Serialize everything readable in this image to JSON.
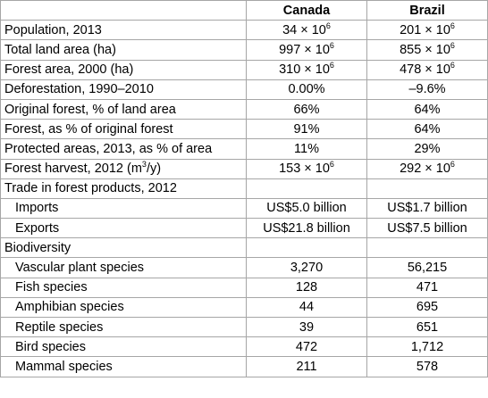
{
  "table": {
    "columns": [
      "",
      "Canada",
      "Brazil"
    ],
    "rows": [
      {
        "label": "Population, 2013",
        "canada": "34 × 10",
        "canada_sup": "6",
        "brazil": "201 × 10",
        "brazil_sup": "6"
      },
      {
        "label": "Total land area (ha)",
        "canada": "997 × 10",
        "canada_sup": "6",
        "brazil": "855 × 10",
        "brazil_sup": "6"
      },
      {
        "label": "Forest area, 2000 (ha)",
        "canada": "310 × 10",
        "canada_sup": "6",
        "brazil": "478 × 10",
        "brazil_sup": "6"
      },
      {
        "label": "Deforestation, 1990–2010",
        "canada": "0.00%",
        "brazil": "–9.6%"
      },
      {
        "label": "Original forest, % of land area",
        "canada": "66%",
        "brazil": "64%"
      },
      {
        "label": "Forest, as % of original forest",
        "canada": "91%",
        "brazil": "64%"
      },
      {
        "label": "Protected areas, 2013, as % of area",
        "canada": "11%",
        "brazil": "29%"
      },
      {
        "label": "Forest harvest, 2012 (m",
        "label_sup": "3",
        "label_tail": "/y)",
        "canada": "153 × 10",
        "canada_sup": "6",
        "brazil": "292 × 10",
        "brazil_sup": "6"
      },
      {
        "label": "Trade in forest products, 2012",
        "canada": "",
        "brazil": ""
      },
      {
        "label": "Imports",
        "canada": "US$5.0 billion",
        "brazil": "US$1.7 billion"
      },
      {
        "label": "Exports",
        "canada": "US$21.8 billion",
        "brazil": "US$7.5 billion"
      },
      {
        "label": "Biodiversity",
        "canada": "",
        "brazil": ""
      },
      {
        "label": "Vascular plant species",
        "canada": "3,270",
        "brazil": "56,215"
      },
      {
        "label": "Fish species",
        "canada": "128",
        "brazil": "471"
      },
      {
        "label": "Amphibian species",
        "canada": "44",
        "brazil": "695"
      },
      {
        "label": "Reptile species",
        "canada": "39",
        "brazil": "651"
      },
      {
        "label": "Bird species",
        "canada": "472",
        "brazil": "1,712"
      },
      {
        "label": "Mammal species",
        "canada": "211",
        "brazil": "578"
      }
    ]
  }
}
